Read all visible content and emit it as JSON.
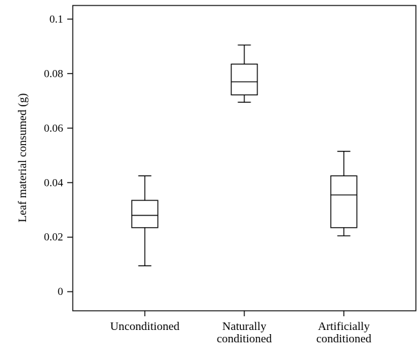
{
  "chart_data": {
    "type": "box",
    "title": "",
    "xlabel": "",
    "ylabel": "Leaf material consumed (g)",
    "ylim": [
      -0.007,
      0.105
    ],
    "yticks": [
      {
        "value": 0,
        "label": "0"
      },
      {
        "value": 0.02,
        "label": "0.02"
      },
      {
        "value": 0.04,
        "label": "0.04"
      },
      {
        "value": 0.06,
        "label": "0.06"
      },
      {
        "value": 0.08,
        "label": "0.08"
      },
      {
        "value": 0.1,
        "label": "0.1"
      }
    ],
    "categories": [
      {
        "lines": [
          "Unconditioned"
        ]
      },
      {
        "lines": [
          "Naturally",
          "conditioned"
        ]
      },
      {
        "lines": [
          "Artificially",
          "conditioned"
        ]
      }
    ],
    "boxes": [
      {
        "min": 0.0095,
        "q1": 0.0235,
        "median": 0.028,
        "q3": 0.0335,
        "max": 0.0425
      },
      {
        "min": 0.0695,
        "q1": 0.0722,
        "median": 0.077,
        "q3": 0.0835,
        "max": 0.0905
      },
      {
        "min": 0.0205,
        "q1": 0.0235,
        "median": 0.0355,
        "q3": 0.0425,
        "max": 0.0515
      }
    ],
    "grid": false,
    "legend": "none"
  }
}
